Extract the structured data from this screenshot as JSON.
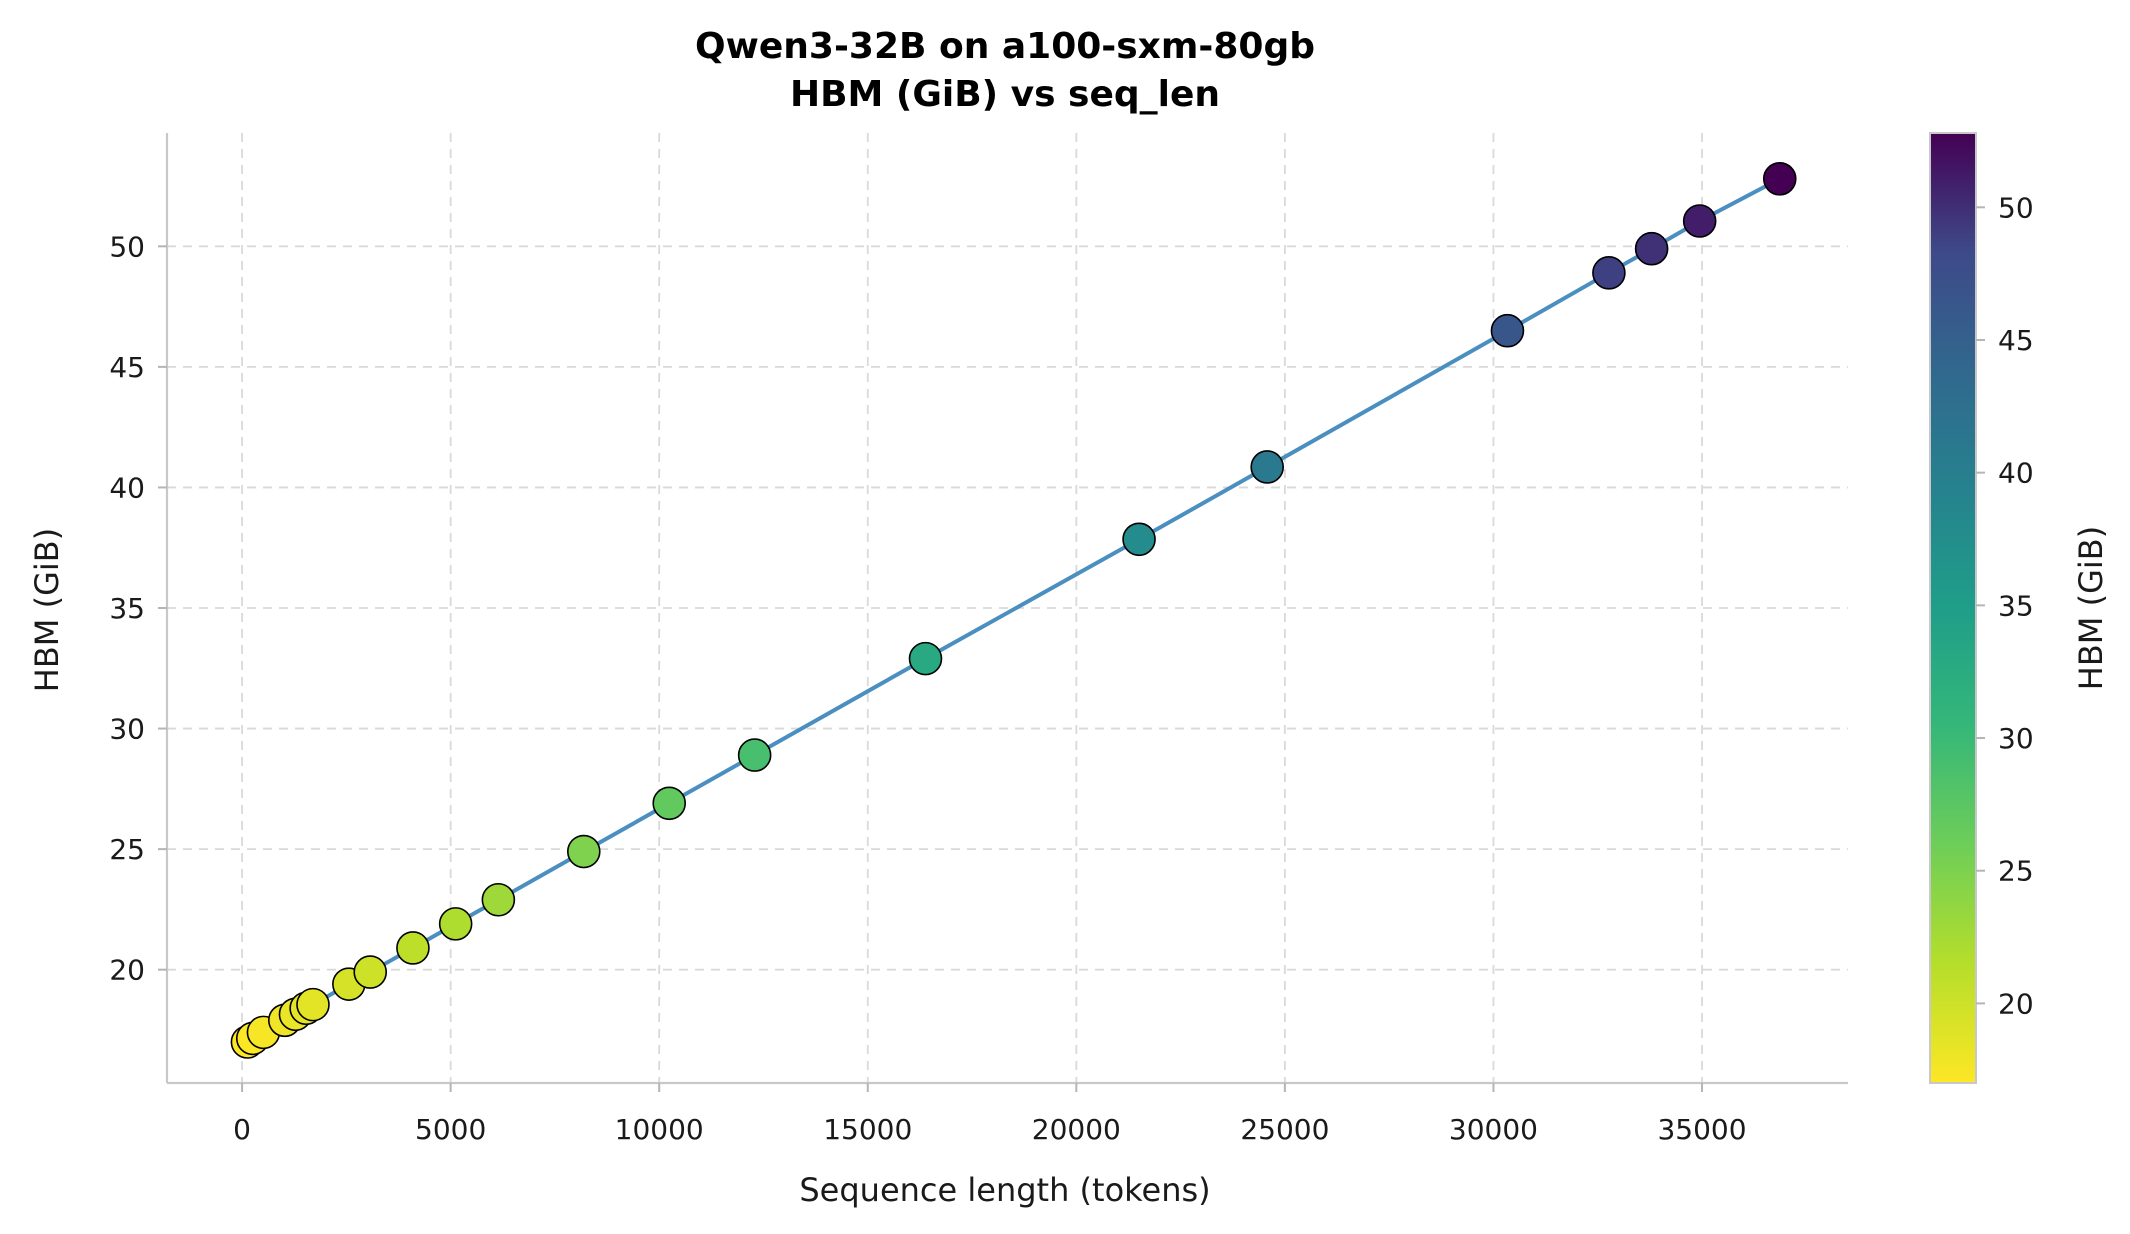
{
  "chart_data": {
    "type": "scatter",
    "title_line1": "Qwen3-32B on a100-sxm-80gb",
    "title_line2": "HBM (GiB) vs seq_len",
    "xlabel": "Sequence length (tokens)",
    "ylabel": "HBM (GiB)",
    "colorbar_label": "HBM (GiB)",
    "colormap": "viridis",
    "xlim": [
      -1800,
      38500
    ],
    "ylim": [
      15.3,
      54.7
    ],
    "xticks": [
      0,
      5000,
      10000,
      15000,
      20000,
      25000,
      30000,
      35000
    ],
    "yticks": [
      20,
      25,
      30,
      35,
      40,
      45,
      50
    ],
    "colorbar_range": [
      17.0,
      52.8
    ],
    "colorbar_ticks": [
      20,
      25,
      30,
      35,
      40,
      45,
      50
    ],
    "grid": true,
    "line_color": "#4a8fc0",
    "points": [
      {
        "x": 128,
        "y": 17.0
      },
      {
        "x": 256,
        "y": 17.15
      },
      {
        "x": 512,
        "y": 17.4
      },
      {
        "x": 1024,
        "y": 17.9
      },
      {
        "x": 1280,
        "y": 18.15
      },
      {
        "x": 1536,
        "y": 18.4
      },
      {
        "x": 1700,
        "y": 18.55
      },
      {
        "x": 2560,
        "y": 19.4
      },
      {
        "x": 3072,
        "y": 19.9
      },
      {
        "x": 4096,
        "y": 20.9
      },
      {
        "x": 5120,
        "y": 21.9
      },
      {
        "x": 6144,
        "y": 22.9
      },
      {
        "x": 8192,
        "y": 24.9
      },
      {
        "x": 10240,
        "y": 26.9
      },
      {
        "x": 12288,
        "y": 28.9
      },
      {
        "x": 16384,
        "y": 32.9
      },
      {
        "x": 21504,
        "y": 37.85
      },
      {
        "x": 24576,
        "y": 40.85
      },
      {
        "x": 30336,
        "y": 46.5
      },
      {
        "x": 32768,
        "y": 48.9
      },
      {
        "x": 33792,
        "y": 49.9
      },
      {
        "x": 34944,
        "y": 51.05
      },
      {
        "x": 36864,
        "y": 52.8
      }
    ]
  }
}
